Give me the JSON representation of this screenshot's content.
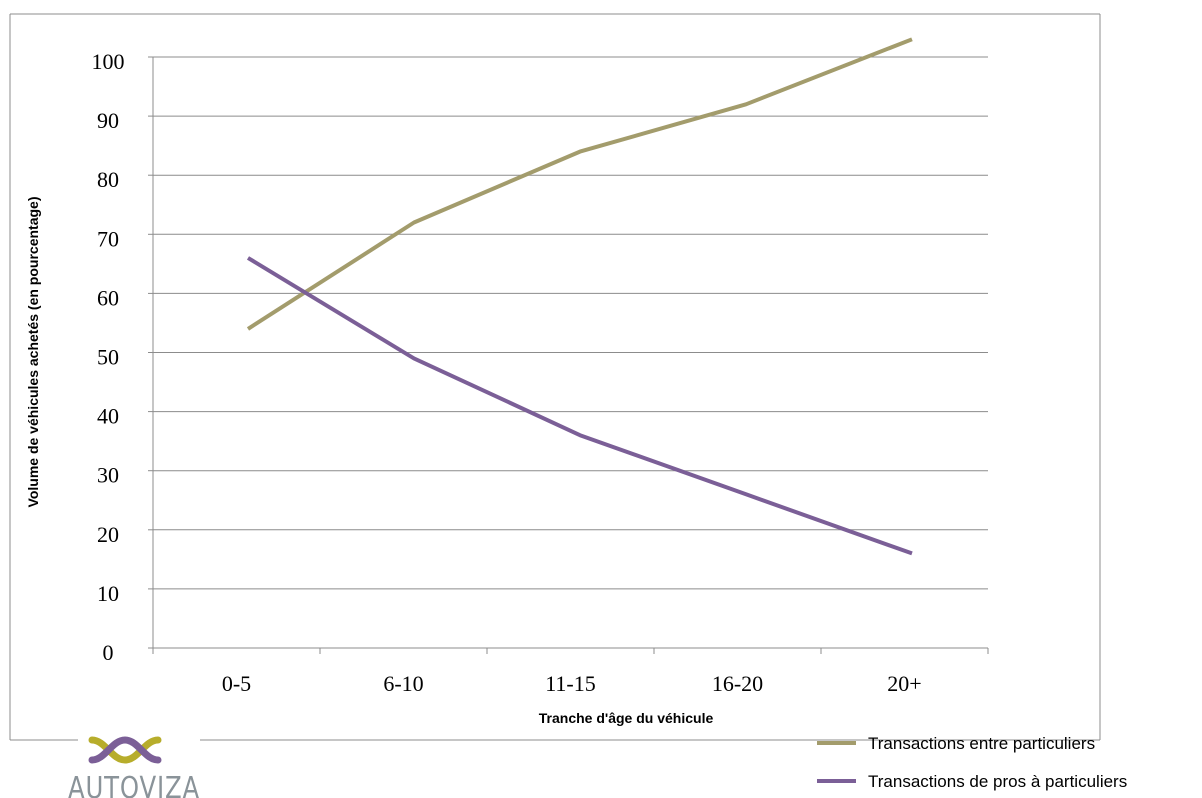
{
  "chart_data": {
    "type": "line",
    "title": "",
    "xlabel": "Tranche d'âge du véhicule",
    "ylabel": "Volume de véhicules achetés (en pourcentage)",
    "categories": [
      "0-5",
      "6-10",
      "11-15",
      "16-20",
      "20+"
    ],
    "yticks": [
      "0",
      "10",
      "20",
      "30",
      "40",
      "50",
      "60",
      "70",
      "80",
      "90",
      "100"
    ],
    "ylim": [
      0,
      100
    ],
    "grid": true,
    "legend_position": "bottom-right",
    "series": [
      {
        "name": "Transactions entre particuliers",
        "color": "#a39c6c",
        "values": [
          54,
          72,
          84,
          92,
          103
        ]
      },
      {
        "name": "Transactions de pros à particuliers",
        "color": "#7b5f97",
        "values": [
          66,
          49,
          36,
          26,
          16
        ]
      }
    ]
  },
  "logo": {
    "text": "AUTOVIZA",
    "colors": {
      "olive": "#b7ad2b",
      "purple": "#7b5f97",
      "gray": "#8a9399"
    }
  }
}
